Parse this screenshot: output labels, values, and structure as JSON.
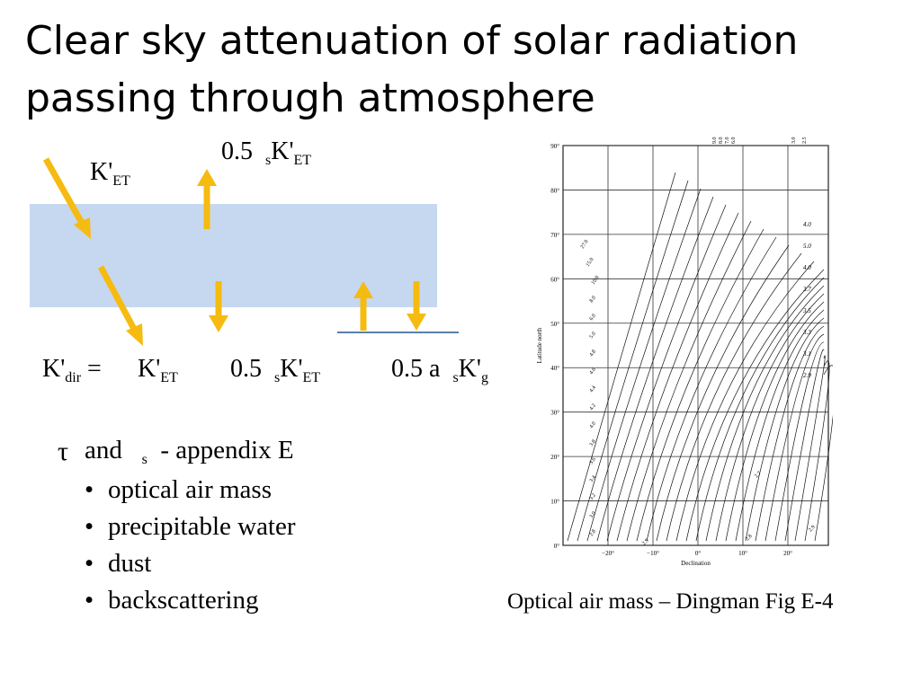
{
  "slide": {
    "title": "Clear sky attenuation of solar radiation passing through atmosphere",
    "diagram": {
      "k_et": "K'",
      "k_et_sub": "ET",
      "reflect_coef": "0.5",
      "reflect_s": "s",
      "reflect_k": "K'",
      "reflect_sub": "ET",
      "equation": {
        "lhs": "K'",
        "lhs_sub": "dir",
        "equals": "=",
        "term1": "K'",
        "term1_sub": "ET",
        "term2_coef": "0.5",
        "term2_s": "s",
        "term2_k": "K'",
        "term2_sub": "ET",
        "term3_coef": "0.5 a",
        "term3_s": "s",
        "term3_k": "K'",
        "term3_sub": "g"
      },
      "colors": {
        "atmosphere": "#c6d7f0",
        "arrow": "#f6bb10",
        "ground": "#5b7fa6"
      }
    },
    "notes": {
      "tau": "τ",
      "line": "and",
      "s": "s",
      "suffix": "- appendix E",
      "bullets": [
        "optical air mass",
        "precipitable water",
        "dust",
        "backscattering"
      ]
    },
    "figure": {
      "caption": "Optical air mass – Dingman Fig E-4",
      "ylabel": "Latitude north",
      "xlabel": "Declination",
      "y_ticks": [
        "90°",
        "80°",
        "70°",
        "60°",
        "50°",
        "40°",
        "30°",
        "20°",
        "10°",
        "0°"
      ],
      "x_ticks": [
        "−20°",
        "−10°",
        "0°",
        "10°",
        "20°"
      ],
      "top_labels": [
        "9.0",
        "8.0",
        "7.0",
        "6.0",
        "3.0",
        "2.5"
      ],
      "right_labels": [
        "4.0",
        "5.0",
        "4.0",
        "3.7",
        "3.5",
        "3.3",
        "3.1",
        "2.9"
      ],
      "left_labels": [
        "27.0",
        "15.0",
        "10.0",
        "8.0",
        "6.0",
        "5.0",
        "4.8",
        "4.6",
        "4.4",
        "4.2",
        "4.0",
        "3.8",
        "3.6",
        "3.4",
        "3.2",
        "3.0",
        "2.8"
      ],
      "inner_labels": [
        "2.7",
        "2.9",
        "2.8",
        "2.9"
      ]
    }
  }
}
